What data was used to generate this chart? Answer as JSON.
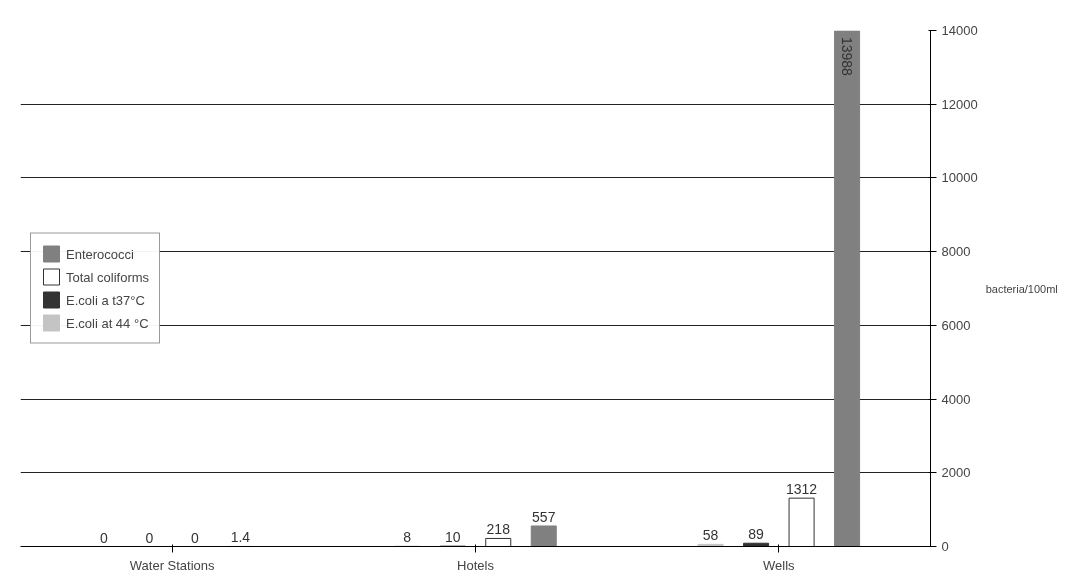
{
  "chart_data": {
    "type": "bar",
    "categories": [
      "Water Stations",
      "Hotels",
      "Wells"
    ],
    "series": [
      {
        "name": "E.coli at 44 °C",
        "color": "#c4c4c4",
        "values": [
          0,
          8,
          58
        ]
      },
      {
        "name": "E.coli a t37°C",
        "color": "#333333",
        "values": [
          0,
          10,
          89
        ]
      },
      {
        "name": "Total coliforms",
        "color": "#ffffff",
        "values": [
          0,
          218,
          1312
        ]
      },
      {
        "name": "Enterococci",
        "color": "#808080",
        "values": [
          1.4,
          557,
          13988
        ]
      }
    ],
    "ylabel": "bacteria/100ml",
    "ylim": [
      0,
      14000
    ],
    "yticks": [
      0,
      2000,
      4000,
      6000,
      8000,
      10000,
      12000,
      14000
    ],
    "grid": "y",
    "legend": "left",
    "data_labels": true
  }
}
